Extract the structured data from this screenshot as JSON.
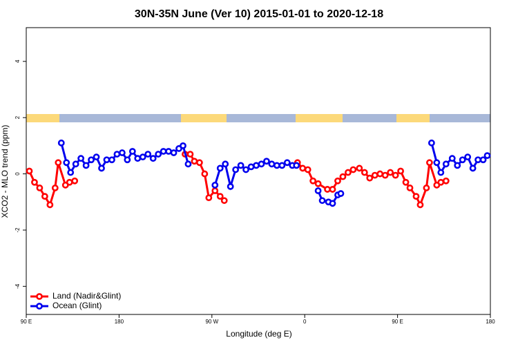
{
  "chart_data": {
    "type": "line",
    "title": "30N-35N June (Ver 10)   2015-01-01 to 2020-12-18",
    "x_label": "Longitude (deg E)",
    "y_label": "XCO2 - MLO trend (ppm)",
    "xlim": [
      90,
      540
    ],
    "ylim": [
      -5,
      5.2
    ],
    "xticks": [
      {
        "value": 90,
        "label": "90 E"
      },
      180,
      {
        "value": 270,
        "label": "90 W"
      },
      {
        "value": 360,
        "label": "0"
      },
      {
        "value": 450,
        "label": "90 E"
      },
      {
        "value": 540,
        "label": "180"
      }
    ],
    "yticks": [
      -4,
      -2,
      0,
      2,
      4
    ],
    "legend": "bottom-left",
    "series": [
      {
        "name": "Land (Nadir&Glint)",
        "color": "#ff0000",
        "x": [
          93,
          98,
          103,
          108,
          113,
          118,
          121,
          128,
          132,
          137,
          null,
          244,
          249,
          253,
          258,
          263,
          267,
          273,
          278,
          282,
          null,
          353,
          358,
          363,
          368,
          373,
          382,
          387,
          392,
          397,
          402,
          407,
          413,
          418,
          423,
          428,
          433,
          438,
          443,
          448,
          453,
          458,
          462,
          468,
          472,
          478,
          481,
          488,
          492,
          497
        ],
        "values": [
          0.1,
          -0.3,
          -0.5,
          -0.8,
          -1.1,
          -0.5,
          0.4,
          -0.4,
          -0.3,
          -0.25,
          null,
          0.7,
          0.7,
          0.45,
          0.4,
          0.0,
          -0.85,
          -0.6,
          -0.8,
          -0.95,
          null,
          0.4,
          0.2,
          0.15,
          -0.25,
          -0.35,
          -0.55,
          -0.55,
          -0.25,
          -0.1,
          0.05,
          0.15,
          0.2,
          0.05,
          -0.15,
          -0.05,
          0.0,
          -0.05,
          0.05,
          -0.05,
          0.1,
          -0.3,
          -0.5,
          -0.8,
          -1.1,
          -0.5,
          0.4,
          -0.4,
          -0.3,
          -0.25
        ]
      },
      {
        "name": "Ocean (Glint)",
        "color": "#0000ee",
        "x": [
          124,
          129,
          133,
          138,
          143,
          148,
          153,
          158,
          163,
          168,
          173,
          178,
          183,
          188,
          193,
          198,
          203,
          208,
          213,
          218,
          223,
          228,
          233,
          238,
          242,
          247,
          null,
          273,
          278,
          283,
          288,
          293,
          298,
          303,
          308,
          313,
          318,
          323,
          328,
          333,
          338,
          343,
          348,
          352,
          null,
          373,
          377,
          383,
          387,
          392,
          395,
          null,
          483,
          488,
          492,
          497,
          503,
          508,
          513,
          518,
          523,
          528,
          533,
          537
        ],
        "values": [
          1.1,
          0.4,
          0.05,
          0.35,
          0.55,
          0.3,
          0.5,
          0.6,
          0.2,
          0.5,
          0.5,
          0.7,
          0.75,
          0.5,
          0.8,
          0.55,
          0.6,
          0.7,
          0.55,
          0.7,
          0.8,
          0.8,
          0.75,
          0.9,
          1.0,
          0.35,
          null,
          -0.4,
          0.2,
          0.35,
          -0.45,
          0.15,
          0.3,
          0.15,
          0.25,
          0.3,
          0.35,
          0.45,
          0.35,
          0.3,
          0.3,
          0.4,
          0.3,
          0.3,
          null,
          -0.6,
          -0.95,
          -1.0,
          -1.05,
          -0.75,
          -0.7,
          null,
          1.1,
          0.4,
          0.05,
          0.35,
          0.55,
          0.3,
          0.5,
          0.6,
          0.2,
          0.5,
          0.5,
          0.65
        ]
      }
    ]
  }
}
